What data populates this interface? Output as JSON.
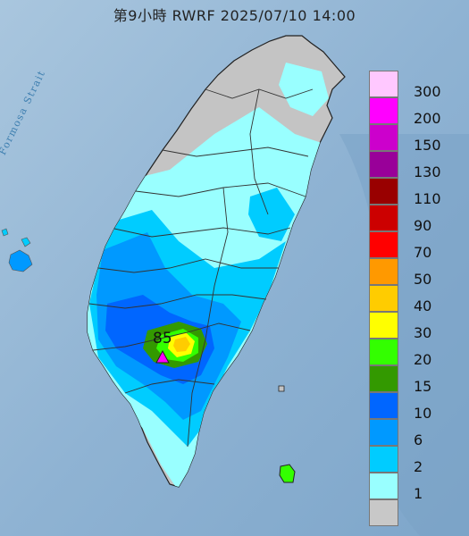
{
  "title": "第9小時  RWRF 2025/07/10 14:00",
  "sea_label": "Formosa Strait",
  "max_value": "85",
  "legend": [
    {
      "label": "300",
      "color": "#ffc8ff"
    },
    {
      "label": "200",
      "color": "#ff00ff"
    },
    {
      "label": "150",
      "color": "#cc00cc"
    },
    {
      "label": "130",
      "color": "#990099"
    },
    {
      "label": "110",
      "color": "#990000"
    },
    {
      "label": "90",
      "color": "#cc0000"
    },
    {
      "label": "70",
      "color": "#ff0000"
    },
    {
      "label": "50",
      "color": "#ff9900"
    },
    {
      "label": "40",
      "color": "#ffcc00"
    },
    {
      "label": "30",
      "color": "#ffff00"
    },
    {
      "label": "20",
      "color": "#33ff00"
    },
    {
      "label": "15",
      "color": "#339900"
    },
    {
      "label": "10",
      "color": "#0066ff"
    },
    {
      "label": "6",
      "color": "#0099ff"
    },
    {
      "label": "2",
      "color": "#00ccff"
    },
    {
      "label": "1",
      "color": "#99ffff"
    },
    {
      "label": "",
      "color": "#c8c8c8"
    }
  ]
}
